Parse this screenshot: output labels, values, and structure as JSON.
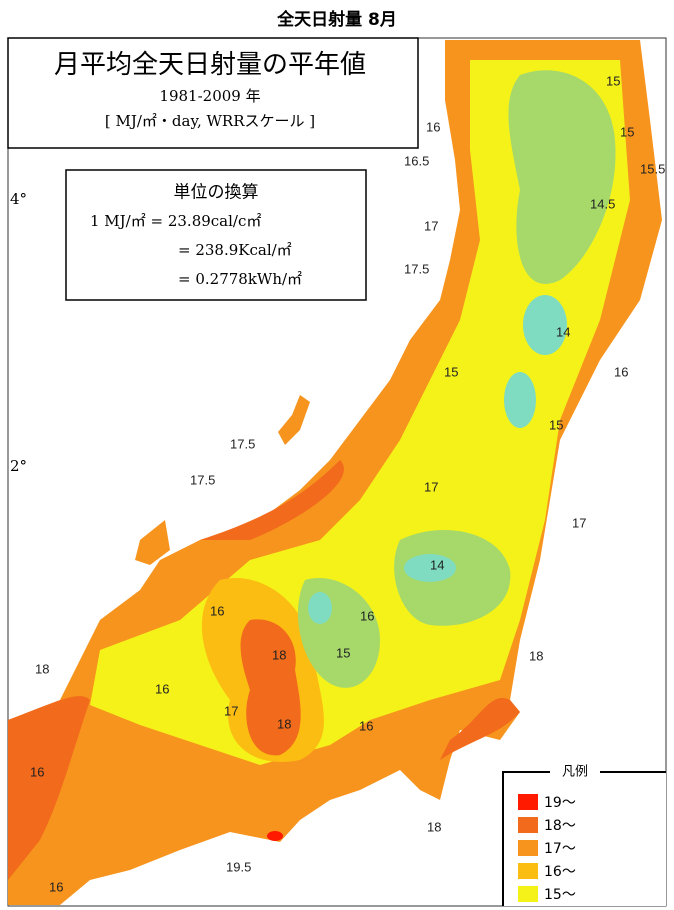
{
  "header": {
    "title": "全天日射量 8月"
  },
  "info_box": {
    "title": "月平均全天日射量の平年値",
    "period": "1981-2009 年",
    "unit": "[ MJ/㎡・day, WRRスケール ]"
  },
  "conversion": {
    "title": "単位の換算",
    "lines": [
      "1 MJ/㎡ = 23.89cal/c㎡",
      "= 238.9Kcal/㎡",
      "= 0.2778kWh/㎡"
    ]
  },
  "lat_labels": [
    "4°",
    "2°"
  ],
  "contour_labels": [
    "15",
    "15",
    "16",
    "16.5",
    "15.5",
    "14.5",
    "17",
    "17.5",
    "14",
    "15",
    "16",
    "15",
    "17.5",
    "17.5",
    "17",
    "17",
    "14",
    "16",
    "16",
    "18",
    "15",
    "18",
    "18",
    "16",
    "17",
    "18",
    "16",
    "16",
    "18",
    "19.5",
    "16"
  ],
  "legend": {
    "title": "凡例",
    "items": [
      {
        "label": "19～",
        "color": "#ff1a00"
      },
      {
        "label": "18～",
        "color": "#f26a1b"
      },
      {
        "label": "17～",
        "color": "#f7941d"
      },
      {
        "label": "16～",
        "color": "#fbbd12"
      },
      {
        "label": "15～",
        "color": "#f5f21a"
      }
    ]
  }
}
